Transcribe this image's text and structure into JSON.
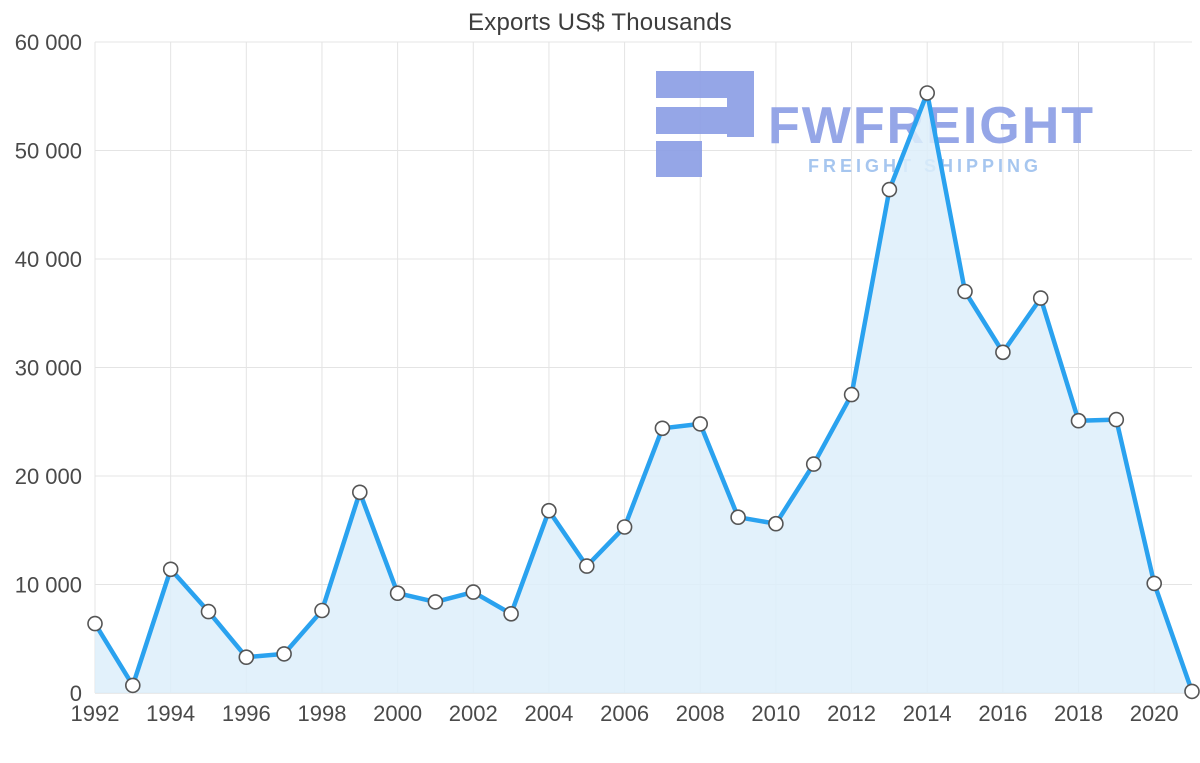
{
  "chart_data": {
    "type": "area",
    "title": "Exports US$ Thousands",
    "x": [
      1992,
      1993,
      1994,
      1995,
      1996,
      1997,
      1998,
      1999,
      2000,
      2001,
      2002,
      2003,
      2004,
      2005,
      2006,
      2007,
      2008,
      2009,
      2010,
      2011,
      2012,
      2013,
      2014,
      2015,
      2016,
      2017,
      2018,
      2019,
      2020,
      2021
    ],
    "values": [
      6400,
      700,
      11400,
      7500,
      3300,
      3600,
      7600,
      18500,
      9200,
      8400,
      9300,
      7300,
      16800,
      11700,
      15300,
      24400,
      24800,
      16200,
      15600,
      21100,
      27500,
      46400,
      55300,
      37000,
      31400,
      36400,
      25100,
      25200,
      10100,
      150
    ],
    "xlabel": "",
    "ylabel": "",
    "ylim": [
      0,
      60000
    ],
    "ytick_step": 10000,
    "xtick_interval": 2,
    "xtick_labels": [
      "1992",
      "1994",
      "1996",
      "1998",
      "2000",
      "2002",
      "2004",
      "2006",
      "2008",
      "2010",
      "2012",
      "2014",
      "2016",
      "2018",
      "2020"
    ],
    "ytick_labels": [
      "0",
      "10 000",
      "20 000",
      "30 000",
      "40 000",
      "50 000",
      "60 000"
    ],
    "grid": true,
    "legend_position": "none",
    "colors": {
      "line": "#2aa2ef",
      "fill": "#ddeefa",
      "marker_fill": "#ffffff",
      "marker_stroke": "#555555",
      "grid": "#e4e4e4",
      "axis": "#d6d6d6",
      "text": "#4a4a4a"
    }
  },
  "watermark": {
    "brand": "FWFREIGHT",
    "tagline": "FREIGHT SHIPPING",
    "brand_color": "#8d9fe6",
    "tagline_color": "#9fc2ee",
    "icon": "freight-blocks-icon"
  }
}
